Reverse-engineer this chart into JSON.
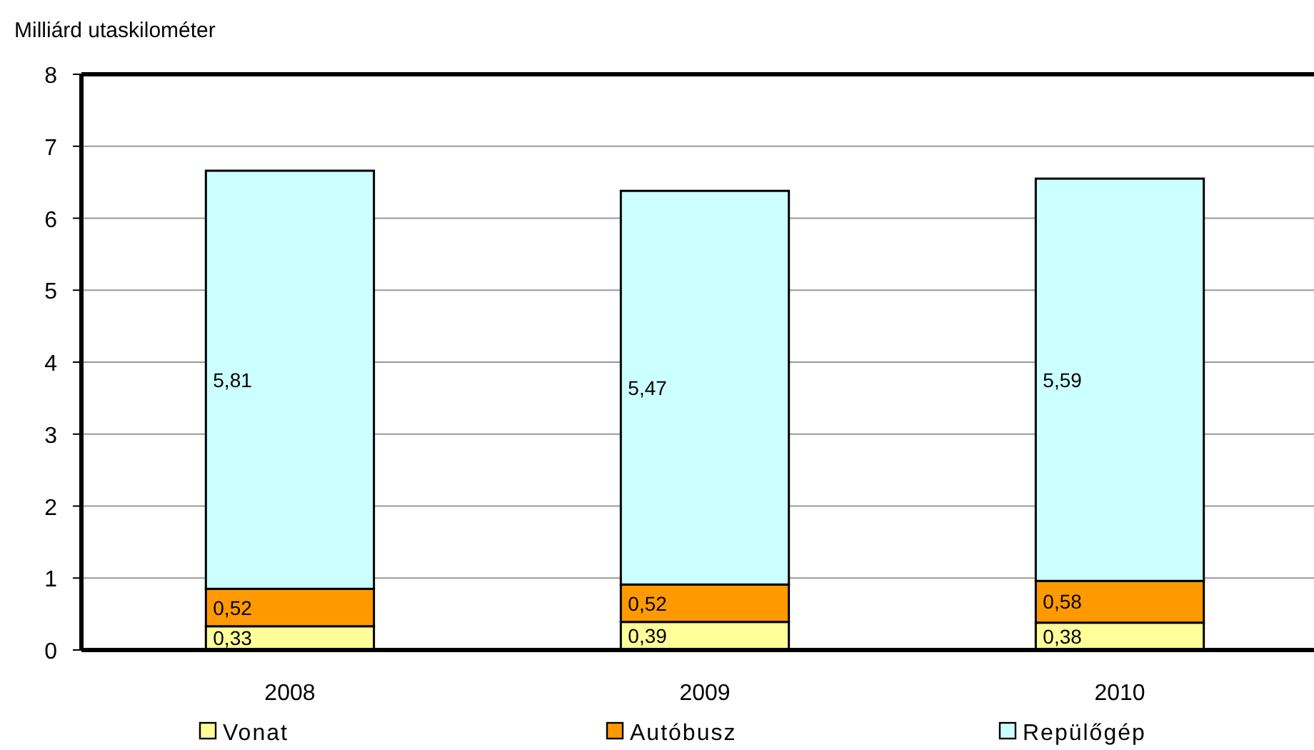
{
  "chart_data": {
    "type": "bar",
    "stacked": true,
    "ylabel": "Milliárd utaskilométer",
    "categories": [
      "2008",
      "2009",
      "2010"
    ],
    "series": [
      {
        "name": "Vonat",
        "color": "#ffff99",
        "values": [
          0.33,
          0.39,
          0.38
        ],
        "value_labels": [
          "0,33",
          "0,39",
          "0,38"
        ]
      },
      {
        "name": "Autóbusz",
        "color": "#ff9900",
        "values": [
          0.52,
          0.52,
          0.58
        ],
        "value_labels": [
          "0,52",
          "0,52",
          "0,58"
        ]
      },
      {
        "name": "Repülőgép",
        "color": "#ccffff",
        "values": [
          5.81,
          5.47,
          5.59
        ],
        "value_labels": [
          "5,81",
          "5,47",
          "5,59"
        ]
      }
    ],
    "ylim": [
      0,
      8
    ],
    "yticks": [
      0,
      1,
      2,
      3,
      4,
      5,
      6,
      7,
      8
    ],
    "grid": "y",
    "legend": "bottom"
  }
}
